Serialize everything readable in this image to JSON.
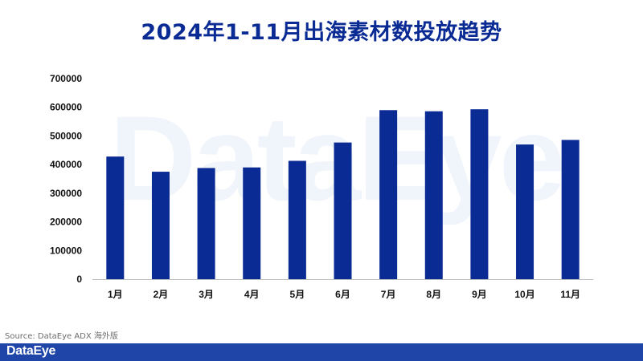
{
  "watermark": "DataEye",
  "source_text": "Source: DataEye ADX 海外版",
  "footer": {
    "logo_text": "DataEye",
    "bar_color": "#1f45a8"
  },
  "chart_data": {
    "type": "bar",
    "title": "2024年1-11月出海素材数投放趋势",
    "categories": [
      "1月",
      "2月",
      "3月",
      "4月",
      "5月",
      "6月",
      "7月",
      "8月",
      "9月",
      "10月",
      "11月"
    ],
    "values": [
      428000,
      375000,
      388000,
      390000,
      413000,
      477000,
      590000,
      586000,
      593000,
      470000,
      486000
    ],
    "yticks": [
      0,
      100000,
      200000,
      300000,
      400000,
      500000,
      600000,
      700000
    ],
    "ylim": [
      0,
      700000
    ],
    "xlabel": "",
    "ylabel": "",
    "grid": false,
    "bar_color": "#0a2a94",
    "title_color": "#0a2a94"
  }
}
